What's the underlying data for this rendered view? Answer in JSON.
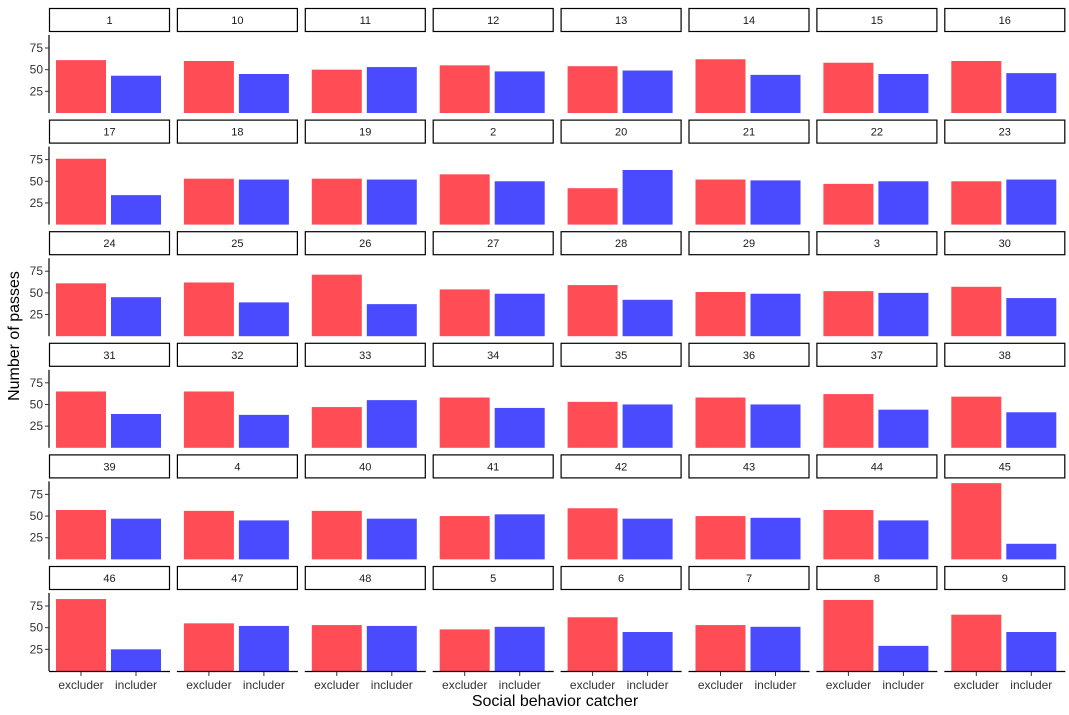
{
  "chart_data": {
    "type": "bar",
    "facet_layout": {
      "rows": 6,
      "cols": 8
    },
    "xlabel": "Social behavior catcher",
    "ylabel": "Number of passes",
    "categories": [
      "excluder",
      "includer"
    ],
    "yticks": [
      25,
      50,
      75
    ],
    "ylim": [
      0,
      90
    ],
    "colors": {
      "excluder": "#FF4C55",
      "includer": "#4A4AFF"
    },
    "grid": false,
    "legend": "none",
    "panels": [
      {
        "label": "1",
        "values": [
          61,
          43
        ]
      },
      {
        "label": "10",
        "values": [
          60,
          45
        ]
      },
      {
        "label": "11",
        "values": [
          50,
          53
        ]
      },
      {
        "label": "12",
        "values": [
          55,
          48
        ]
      },
      {
        "label": "13",
        "values": [
          54,
          49
        ]
      },
      {
        "label": "14",
        "values": [
          62,
          44
        ]
      },
      {
        "label": "15",
        "values": [
          58,
          45
        ]
      },
      {
        "label": "16",
        "values": [
          60,
          46
        ]
      },
      {
        "label": "17",
        "values": [
          76,
          34
        ]
      },
      {
        "label": "18",
        "values": [
          53,
          52
        ]
      },
      {
        "label": "19",
        "values": [
          53,
          52
        ]
      },
      {
        "label": "2",
        "values": [
          58,
          50
        ]
      },
      {
        "label": "20",
        "values": [
          42,
          63
        ]
      },
      {
        "label": "21",
        "values": [
          52,
          51
        ]
      },
      {
        "label": "22",
        "values": [
          47,
          50
        ]
      },
      {
        "label": "23",
        "values": [
          50,
          52
        ]
      },
      {
        "label": "24",
        "values": [
          61,
          45
        ]
      },
      {
        "label": "25",
        "values": [
          62,
          39
        ]
      },
      {
        "label": "26",
        "values": [
          71,
          37
        ]
      },
      {
        "label": "27",
        "values": [
          54,
          49
        ]
      },
      {
        "label": "28",
        "values": [
          59,
          42
        ]
      },
      {
        "label": "29",
        "values": [
          51,
          49
        ]
      },
      {
        "label": "3",
        "values": [
          52,
          50
        ]
      },
      {
        "label": "30",
        "values": [
          57,
          44
        ]
      },
      {
        "label": "31",
        "values": [
          65,
          39
        ]
      },
      {
        "label": "32",
        "values": [
          65,
          38
        ]
      },
      {
        "label": "33",
        "values": [
          47,
          55
        ]
      },
      {
        "label": "34",
        "values": [
          58,
          46
        ]
      },
      {
        "label": "35",
        "values": [
          53,
          50
        ]
      },
      {
        "label": "36",
        "values": [
          58,
          50
        ]
      },
      {
        "label": "37",
        "values": [
          62,
          44
        ]
      },
      {
        "label": "38",
        "values": [
          59,
          41
        ]
      },
      {
        "label": "39",
        "values": [
          57,
          47
        ]
      },
      {
        "label": "4",
        "values": [
          56,
          45
        ]
      },
      {
        "label": "40",
        "values": [
          56,
          47
        ]
      },
      {
        "label": "41",
        "values": [
          50,
          52
        ]
      },
      {
        "label": "42",
        "values": [
          59,
          47
        ]
      },
      {
        "label": "43",
        "values": [
          50,
          48
        ]
      },
      {
        "label": "44",
        "values": [
          57,
          45
        ]
      },
      {
        "label": "45",
        "values": [
          88,
          18
        ]
      },
      {
        "label": "46",
        "values": [
          83,
          25
        ]
      },
      {
        "label": "47",
        "values": [
          55,
          52
        ]
      },
      {
        "label": "48",
        "values": [
          53,
          52
        ]
      },
      {
        "label": "5",
        "values": [
          48,
          51
        ]
      },
      {
        "label": "6",
        "values": [
          62,
          45
        ]
      },
      {
        "label": "7",
        "values": [
          53,
          51
        ]
      },
      {
        "label": "8",
        "values": [
          82,
          29
        ]
      },
      {
        "label": "9",
        "values": [
          65,
          45
        ]
      }
    ]
  }
}
